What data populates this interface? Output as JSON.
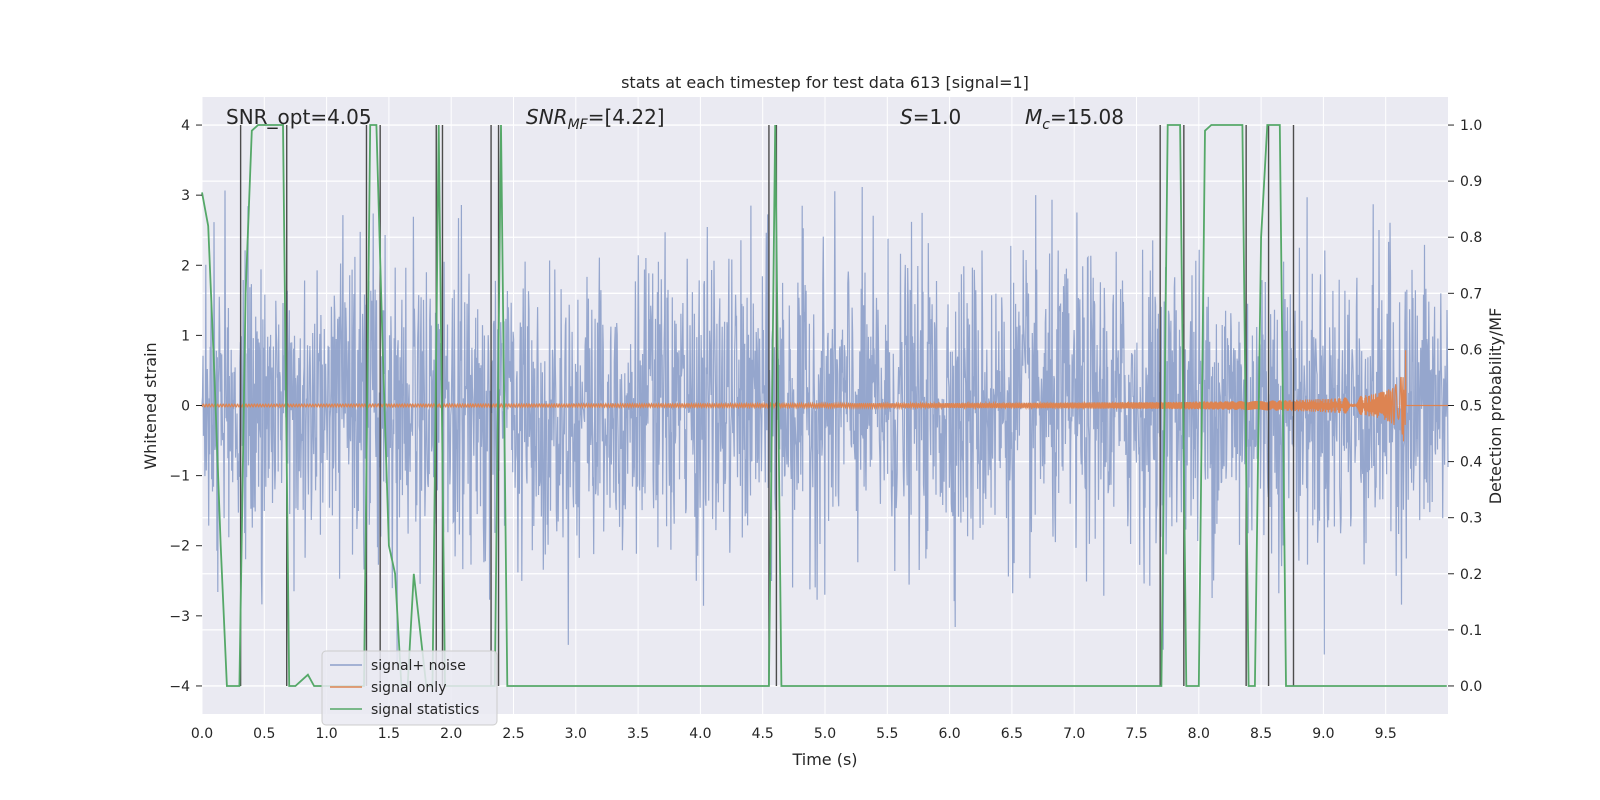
{
  "chart_data": {
    "type": "line",
    "title": "stats at each timestep for test data 613 [signal=1]",
    "xlabel": "Time (s)",
    "ylabel": "Whitened strain",
    "y2label": "Detection probability/MF",
    "xlim": [
      0.0,
      10.0
    ],
    "ylim": [
      -4.4,
      4.4
    ],
    "y2lim": [
      -0.05,
      1.05
    ],
    "x_ticks": [
      "0.0",
      "0.5",
      "1.0",
      "1.5",
      "2.0",
      "2.5",
      "3.0",
      "3.5",
      "4.0",
      "4.5",
      "5.0",
      "5.5",
      "6.0",
      "6.5",
      "7.0",
      "7.5",
      "8.0",
      "8.5",
      "9.0",
      "9.5"
    ],
    "y_ticks": [
      "4",
      "3",
      "2",
      "1",
      "0",
      "−1",
      "−2",
      "−3",
      "−4"
    ],
    "y2_ticks": [
      "1.0",
      "0.9",
      "0.8",
      "0.7",
      "0.6",
      "0.5",
      "0.4",
      "0.3",
      "0.2",
      "0.1",
      "0.0"
    ],
    "grid": true,
    "legend_position": "lower-left",
    "annotations": [
      {
        "text": "SNR_opt=4.05"
      },
      {
        "text_main": "SNR",
        "text_sub": "MF",
        "text_rest": "=[4.22]"
      },
      {
        "text_main": "S",
        "text_rest": "=1.0"
      },
      {
        "text_main": "M",
        "text_sub": "c",
        "text_rest": "=15.08"
      }
    ],
    "series": [
      {
        "name": "signal+ noise",
        "color": "#8c9fc9",
        "description_values": {
          "noise_std": 1.0,
          "x_start": 0.0,
          "x_end": 10.0
        }
      },
      {
        "name": "signal only",
        "color": "#dd8452",
        "chirp_peak_time": 9.66,
        "chirp_peak_amplitude": 0.8
      },
      {
        "name": "signal statistics",
        "color": "#55a868",
        "axis": "right",
        "x": [
          0.0,
          0.05,
          0.1,
          0.15,
          0.2,
          0.25,
          0.3,
          0.35,
          0.4,
          0.45,
          0.5,
          0.55,
          0.6,
          0.65,
          0.7,
          0.75,
          0.8,
          0.85,
          0.9,
          0.95,
          1.0,
          1.05,
          1.1,
          1.15,
          1.2,
          1.25,
          1.3,
          1.35,
          1.4,
          1.45,
          1.5,
          1.55,
          1.6,
          1.65,
          1.7,
          1.75,
          1.8,
          1.85,
          1.9,
          1.95,
          2.0,
          2.05,
          2.1,
          2.15,
          2.2,
          2.25,
          2.3,
          2.35,
          2.4,
          2.45,
          2.5,
          4.55,
          4.6,
          4.65,
          7.65,
          7.7,
          7.75,
          7.8,
          7.85,
          7.9,
          7.95,
          8.0,
          8.05,
          8.1,
          8.35,
          8.4,
          8.45,
          8.5,
          8.55,
          8.6,
          8.65,
          8.7,
          8.75,
          8.8,
          9.99
        ],
        "y": [
          0.88,
          0.82,
          0.55,
          0.25,
          0.0,
          0.0,
          0.0,
          0.7,
          0.99,
          1.0,
          1.0,
          1.0,
          1.0,
          1.0,
          0.0,
          0.0,
          0.01,
          0.02,
          0.0,
          0.0,
          0.0,
          0.0,
          0.0,
          0.0,
          0.0,
          0.0,
          0.0,
          1.0,
          1.0,
          0.6,
          0.25,
          0.2,
          0.0,
          0.0,
          0.2,
          0.1,
          0.0,
          0.0,
          1.0,
          0.0,
          0.0,
          0.0,
          0.0,
          0.0,
          0.0,
          0.0,
          0.0,
          0.0,
          1.0,
          0.0,
          0.0,
          0.0,
          1.0,
          0.0,
          0.0,
          0.0,
          1.0,
          1.0,
          1.0,
          0.0,
          0.0,
          0.0,
          0.99,
          1.0,
          1.0,
          0.0,
          0.0,
          0.8,
          1.0,
          1.0,
          1.0,
          0.0,
          0.0,
          0.0,
          0.0
        ]
      }
    ],
    "vertical_lines_x": [
      0.31,
      0.68,
      1.32,
      1.43,
      1.88,
      1.93,
      2.32,
      2.38,
      4.55,
      4.61,
      7.69,
      7.88,
      8.38,
      8.56,
      8.76
    ],
    "colors": {
      "plot_background": "#eaeaf2",
      "grid": "#ffffff",
      "vertical_lines": "#4c4c4c"
    }
  }
}
